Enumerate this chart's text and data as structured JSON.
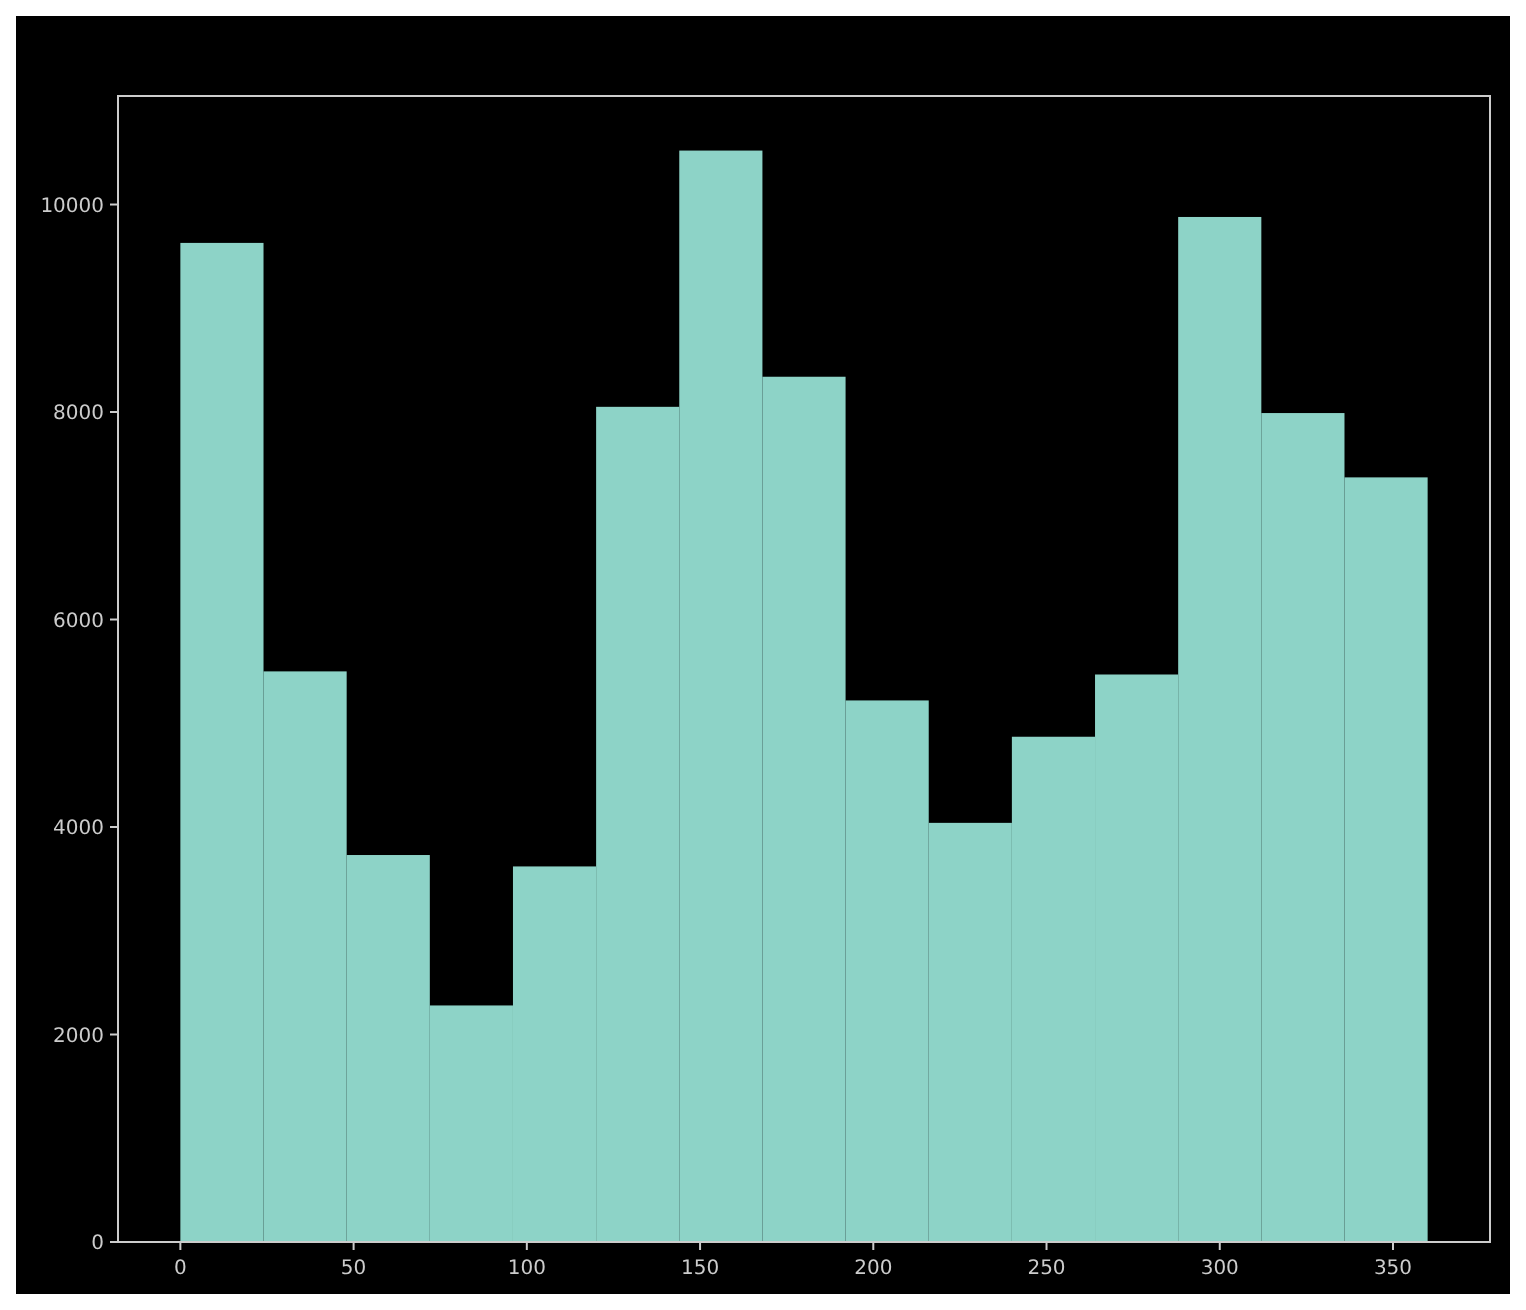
{
  "chart_data": {
    "type": "histogram",
    "bins": [
      0,
      24,
      48,
      72,
      96,
      120,
      144,
      168,
      192,
      216,
      240,
      264,
      288,
      312,
      336,
      360
    ],
    "values": [
      9630,
      5500,
      3730,
      2280,
      3620,
      8050,
      10520,
      8340,
      5220,
      4040,
      4870,
      5470,
      9880,
      7990,
      7370
    ],
    "color": "#8dd3c7",
    "xlim": [
      -18,
      378
    ],
    "ylim": [
      0,
      11046
    ],
    "xticks": [
      0,
      50,
      100,
      150,
      200,
      250,
      300,
      350
    ],
    "yticks": [
      0,
      2000,
      4000,
      6000,
      8000,
      10000
    ],
    "grid": false
  }
}
